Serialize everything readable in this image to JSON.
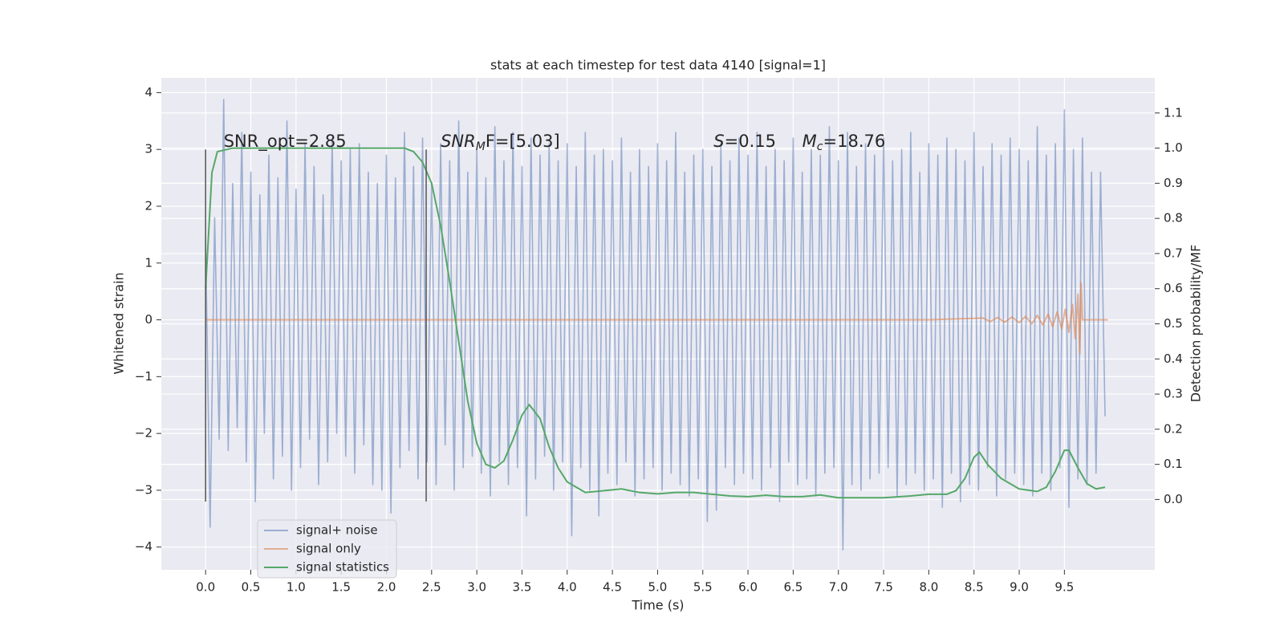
{
  "chart_data": {
    "type": "line",
    "title": "stats at each timestep for test data 4140 [signal=1]",
    "xlabel": "Time (s)",
    "ylabel": "Whitened strain",
    "y2label": "Detection probability/MF",
    "xlim": [
      -0.49,
      10.5
    ],
    "ylim": [
      -4.4,
      4.26
    ],
    "y2lim": [
      -0.2,
      1.2
    ],
    "xticks": [
      {
        "value": 0,
        "label": "0.0"
      },
      {
        "value": 0.5,
        "label": "0.5"
      },
      {
        "value": 1,
        "label": "1.0"
      },
      {
        "value": 1.5,
        "label": "1.5"
      },
      {
        "value": 2,
        "label": "2.0"
      },
      {
        "value": 2.5,
        "label": "2.5"
      },
      {
        "value": 3,
        "label": "3.0"
      },
      {
        "value": 3.5,
        "label": "3.5"
      },
      {
        "value": 4,
        "label": "4.0"
      },
      {
        "value": 4.5,
        "label": "4.5"
      },
      {
        "value": 5,
        "label": "5.0"
      },
      {
        "value": 5.5,
        "label": "5.5"
      },
      {
        "value": 6,
        "label": "6.0"
      },
      {
        "value": 6.5,
        "label": "6.5"
      },
      {
        "value": 7,
        "label": "7.0"
      },
      {
        "value": 7.5,
        "label": "7.5"
      },
      {
        "value": 8,
        "label": "8.0"
      },
      {
        "value": 8.5,
        "label": "8.5"
      },
      {
        "value": 9,
        "label": "9.0"
      },
      {
        "value": 9.5,
        "label": "9.5"
      }
    ],
    "yticks": [
      {
        "value": -4,
        "label": "−4"
      },
      {
        "value": -3,
        "label": "−3"
      },
      {
        "value": -2,
        "label": "−2"
      },
      {
        "value": -1,
        "label": "−1"
      },
      0,
      1,
      2,
      3,
      4
    ],
    "y2ticks": [
      {
        "value": 0,
        "label": "0.0"
      },
      {
        "value": 0.1,
        "label": "0.1"
      },
      {
        "value": 0.2,
        "label": "0.2"
      },
      {
        "value": 0.3,
        "label": "0.3"
      },
      {
        "value": 0.4,
        "label": "0.4"
      },
      {
        "value": 0.5,
        "label": "0.5"
      },
      {
        "value": 0.6,
        "label": "0.6"
      },
      {
        "value": 0.7,
        "label": "0.7"
      },
      {
        "value": 0.8,
        "label": "0.8"
      },
      {
        "value": 0.9,
        "label": "0.9"
      },
      {
        "value": 1,
        "label": "1.0"
      },
      {
        "value": 1.1,
        "label": "1.1"
      }
    ],
    "grid": true,
    "legend": "lower left",
    "vlines": [
      0,
      2.44
    ],
    "vline_ymin": -3.2,
    "vline_ymax": 3.0,
    "vline_color": "#555555",
    "annotations": [
      {
        "text": "SNR_opt=2.85"
      },
      {
        "symbol": "SNR",
        "sub": "M",
        "text": "F=[5.03]"
      },
      {
        "symbol": "S",
        "text": "=0.15"
      },
      {
        "symbol": "M",
        "sub": "c",
        "text": "=18.76"
      }
    ],
    "series": [
      {
        "name": "signal+ noise",
        "color": "#4c72b0",
        "opacity": 0.5,
        "axis": "y",
        "x": [
          0,
          0.05,
          0.1,
          0.15,
          0.2,
          0.25,
          0.3,
          0.35,
          0.4,
          0.45,
          0.5,
          0.55,
          0.6,
          0.65,
          0.7,
          0.75,
          0.8,
          0.85,
          0.9,
          0.95,
          1,
          1.05,
          1.1,
          1.15,
          1.2,
          1.25,
          1.3,
          1.35,
          1.4,
          1.45,
          1.5,
          1.55,
          1.6,
          1.65,
          1.7,
          1.75,
          1.8,
          1.85,
          1.9,
          1.95,
          2,
          2.05,
          2.1,
          2.15,
          2.2,
          2.25,
          2.3,
          2.35,
          2.4,
          2.45,
          2.5,
          2.55,
          2.6,
          2.65,
          2.7,
          2.75,
          2.8,
          2.85,
          2.9,
          2.95,
          3,
          3.05,
          3.1,
          3.15,
          3.2,
          3.25,
          3.3,
          3.35,
          3.4,
          3.45,
          3.5,
          3.55,
          3.6,
          3.65,
          3.7,
          3.75,
          3.8,
          3.85,
          3.9,
          3.95,
          4,
          4.05,
          4.1,
          4.15,
          4.2,
          4.25,
          4.3,
          4.35,
          4.4,
          4.45,
          4.5,
          4.55,
          4.6,
          4.65,
          4.7,
          4.75,
          4.8,
          4.85,
          4.9,
          4.95,
          5,
          5.05,
          5.1,
          5.15,
          5.2,
          5.25,
          5.3,
          5.35,
          5.4,
          5.45,
          5.5,
          5.55,
          5.6,
          5.65,
          5.7,
          5.75,
          5.8,
          5.85,
          5.9,
          5.95,
          6,
          6.05,
          6.1,
          6.15,
          6.2,
          6.25,
          6.3,
          6.35,
          6.4,
          6.45,
          6.5,
          6.55,
          6.6,
          6.65,
          6.7,
          6.75,
          6.8,
          6.85,
          6.9,
          6.95,
          7,
          7.05,
          7.1,
          7.15,
          7.2,
          7.25,
          7.3,
          7.35,
          7.4,
          7.45,
          7.5,
          7.55,
          7.6,
          7.65,
          7.7,
          7.75,
          7.8,
          7.85,
          7.9,
          7.95,
          8,
          8.05,
          8.1,
          8.15,
          8.2,
          8.25,
          8.3,
          8.35,
          8.4,
          8.45,
          8.5,
          8.55,
          8.6,
          8.65,
          8.7,
          8.75,
          8.8,
          8.85,
          8.9,
          8.95,
          9,
          9.05,
          9.1,
          9.15,
          9.2,
          9.25,
          9.3,
          9.35,
          9.4,
          9.45,
          9.5,
          9.55,
          9.6,
          9.65,
          9.7,
          9.75,
          9.8,
          9.85,
          9.9,
          9.95
        ],
        "values": [
          1.4,
          -3.65,
          1.8,
          -2.1,
          3.88,
          -2.3,
          2.4,
          -1.9,
          3.3,
          -2.5,
          2.6,
          -3.2,
          2.2,
          -2.0,
          2.9,
          -2.8,
          2.5,
          -2.4,
          3.5,
          -3.0,
          2.3,
          -2.6,
          3.1,
          -2.1,
          2.7,
          -2.9,
          2.2,
          -2.5,
          3.2,
          -2.0,
          2.8,
          -2.4,
          3.0,
          -2.7,
          3.1,
          -2.2,
          2.6,
          -2.9,
          2.4,
          -3.0,
          2.9,
          -3.4,
          2.5,
          -2.6,
          3.3,
          -2.3,
          2.7,
          -2.8,
          3.2,
          -2.5,
          2.4,
          -2.9,
          3.1,
          -2.2,
          2.8,
          -3.0,
          3.5,
          -2.6,
          2.6,
          -2.4,
          3.0,
          -2.7,
          2.5,
          -3.1,
          3.4,
          -2.5,
          2.8,
          -2.9,
          3.3,
          -2.6,
          2.7,
          -3.45,
          3.2,
          -2.8,
          2.9,
          -2.4,
          3.1,
          -3.0,
          2.8,
          -2.5,
          3.1,
          -3.8,
          2.7,
          -2.6,
          3.3,
          -3.0,
          2.9,
          -3.45,
          3.0,
          -2.7,
          2.8,
          -2.9,
          3.2,
          -2.5,
          2.6,
          -3.1,
          3.0,
          -2.8,
          2.7,
          -2.6,
          3.1,
          -3.0,
          2.8,
          -2.7,
          3.3,
          -2.9,
          2.6,
          -3.1,
          2.9,
          -2.8,
          3.0,
          -3.55,
          2.7,
          -3.35,
          3.1,
          -2.6,
          2.8,
          -2.9,
          3.2,
          -2.7,
          2.9,
          -2.8,
          3.3,
          -3.0,
          2.7,
          -2.6,
          3.0,
          -3.2,
          2.8,
          -2.5,
          3.2,
          -2.9,
          2.6,
          -2.8,
          3.0,
          -3.1,
          2.9,
          -2.7,
          3.4,
          -2.6,
          2.8,
          -4.05,
          3.3,
          -2.9,
          2.7,
          -3.0,
          3.1,
          -2.8,
          2.9,
          -2.7,
          3.2,
          -2.6,
          2.8,
          -3.1,
          3.0,
          -2.9,
          3.3,
          -2.7,
          2.6,
          -3.0,
          3.1,
          -2.8,
          2.9,
          -3.3,
          3.2,
          -2.7,
          3.0,
          -3.2,
          2.8,
          -2.9,
          3.3,
          -3.0,
          2.7,
          -2.6,
          3.1,
          -3.1,
          2.9,
          -2.8,
          3.2,
          -2.7,
          3.0,
          -2.9,
          2.8,
          -3.1,
          3.4,
          -2.7,
          2.9,
          -3.0,
          3.1,
          -2.6,
          3.7,
          -3.3,
          3.0,
          -2.8,
          3.2,
          -2.9,
          2.6,
          -2.7,
          2.6,
          -1.7
        ]
      },
      {
        "name": "signal only",
        "color": "#dd8452",
        "opacity": 0.6,
        "axis": "y",
        "x": [
          0,
          8.0,
          8.6,
          8.68,
          8.76,
          8.84,
          8.92,
          9.0,
          9.07,
          9.14,
          9.2,
          9.26,
          9.32,
          9.37,
          9.42,
          9.47,
          9.51,
          9.55,
          9.59,
          9.62,
          9.65,
          9.67,
          9.685,
          9.7,
          9.98
        ],
        "values": [
          0,
          0,
          0.03,
          -0.03,
          0.04,
          -0.04,
          0.05,
          -0.05,
          0.06,
          -0.07,
          0.08,
          -0.09,
          0.1,
          -0.12,
          0.14,
          -0.16,
          0.19,
          -0.22,
          0.27,
          -0.33,
          0.45,
          -0.6,
          0.65,
          0,
          0
        ]
      },
      {
        "name": "signal statistics",
        "color": "#55a868",
        "opacity": 1,
        "axis": "y2",
        "x": [
          0,
          0.07,
          0.13,
          0.3,
          1,
          2,
          2.2,
          2.3,
          2.4,
          2.5,
          2.6,
          2.7,
          2.8,
          2.9,
          3.0,
          3.1,
          3.2,
          3.3,
          3.4,
          3.5,
          3.58,
          3.7,
          3.8,
          3.9,
          4.0,
          4.2,
          4.4,
          4.6,
          4.8,
          5.0,
          5.2,
          5.4,
          5.6,
          5.8,
          6.0,
          6.2,
          6.4,
          6.6,
          6.8,
          7.0,
          7.5,
          7.8,
          8.0,
          8.2,
          8.3,
          8.4,
          8.5,
          8.56,
          8.65,
          8.8,
          9.0,
          9.2,
          9.3,
          9.4,
          9.5,
          9.55,
          9.65,
          9.75,
          9.85,
          9.95
        ],
        "values": [
          0.6,
          0.93,
          0.99,
          1.0,
          1.0,
          1.0,
          1.0,
          0.99,
          0.96,
          0.9,
          0.78,
          0.62,
          0.45,
          0.28,
          0.16,
          0.1,
          0.09,
          0.11,
          0.17,
          0.24,
          0.27,
          0.23,
          0.15,
          0.09,
          0.05,
          0.02,
          0.025,
          0.03,
          0.02,
          0.016,
          0.02,
          0.02,
          0.015,
          0.01,
          0.008,
          0.012,
          0.008,
          0.008,
          0.013,
          0.005,
          0.005,
          0.01,
          0.015,
          0.015,
          0.025,
          0.06,
          0.12,
          0.135,
          0.1,
          0.06,
          0.03,
          0.023,
          0.035,
          0.08,
          0.14,
          0.14,
          0.09,
          0.045,
          0.03,
          0.035
        ]
      }
    ]
  }
}
